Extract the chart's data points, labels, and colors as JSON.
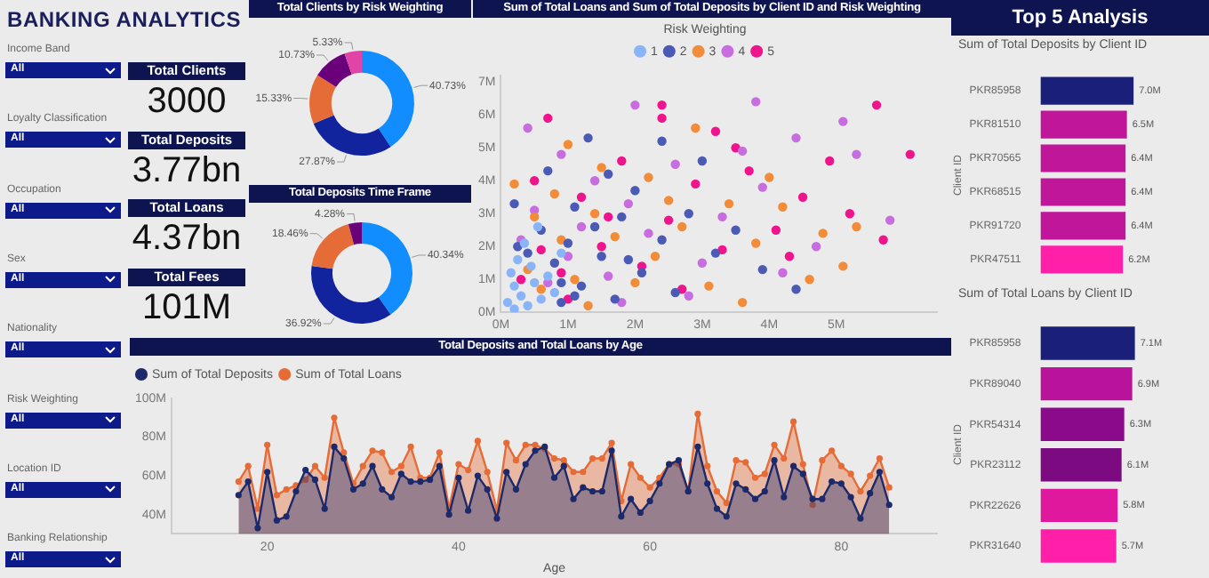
{
  "chart_data": [
    {
      "type": "other",
      "title": "BANKING ANALYTICS",
      "annotations": [
        "Income Band",
        "All",
        "Loyalty Classification",
        "All",
        "Occupation",
        "All",
        "Sex",
        "All",
        "Nationality",
        "All",
        "Risk Weighting",
        "All",
        "Location ID",
        "All",
        "Banking Relationship",
        "All"
      ]
    },
    {
      "type": "other",
      "annotations": [
        "Total Clients",
        "3000",
        "Total Deposits",
        "3.77bn",
        "Total Loans",
        "4.37bn",
        "Total Fees",
        "101M"
      ]
    },
    {
      "type": "donut",
      "title": "Total Clients by Risk Weighting",
      "categories": [
        null,
        null,
        null,
        null,
        null
      ],
      "values": [
        40.73,
        27.87,
        15.33,
        10.73,
        5.33
      ],
      "colors": [
        "#118dff",
        "#12239e",
        "#e66c37",
        "#6b007b",
        "#e044a7"
      ],
      "value_labels": [
        "40.73%",
        "27.87%",
        "15.33%",
        "10.73%",
        "5.33%"
      ]
    },
    {
      "type": "donut",
      "title": "Total Deposits Time Frame",
      "categories": [
        null,
        null,
        null,
        null
      ],
      "values": [
        40.34,
        36.92,
        18.46,
        4.28
      ],
      "colors": [
        "#118dff",
        "#12239e",
        "#e66c37",
        "#6b007b"
      ],
      "value_labels": [
        "40.34%",
        "36.92%",
        "18.46%",
        "4.28%"
      ]
    },
    {
      "type": "scatter",
      "title": "Sum of Total Loans and Sum of Total Deposits by Client ID and Risk Weighting",
      "legend_title": "Risk Weighting",
      "legend": "top",
      "marker": "circle",
      "xlim": [
        0,
        6.5
      ],
      "xticks": [
        {
          "value": 0,
          "label": "0M"
        },
        {
          "value": 1,
          "label": "1M"
        },
        {
          "value": 2,
          "label": "2M"
        },
        {
          "value": 3,
          "label": "3M"
        },
        {
          "value": 4,
          "label": "4M"
        },
        {
          "value": 5,
          "label": "5M"
        }
      ],
      "ylim": [
        0,
        7.2
      ],
      "yticks": [
        {
          "value": 0,
          "label": "0M"
        },
        {
          "value": 1,
          "label": "1M"
        },
        {
          "value": 2,
          "label": "2M"
        },
        {
          "value": 3,
          "label": "3M"
        },
        {
          "value": 4,
          "label": "4M"
        },
        {
          "value": 5,
          "label": "5M"
        },
        {
          "value": 6,
          "label": "6M"
        },
        {
          "value": 7,
          "label": "7M"
        }
      ],
      "series": [
        {
          "name": "1",
          "color": "#8ab4f8",
          "x": [
            0.1,
            0.2,
            0.3,
            0.15,
            0.4,
            0.5,
            0.25,
            0.6,
            0.35,
            0.7,
            0.45,
            0.8,
            0.2,
            0.9,
            0.55
          ],
          "values": [
            0.3,
            0.8,
            0.5,
            1.2,
            0.2,
            0.9,
            1.6,
            0.4,
            2.1,
            1.1,
            1.4,
            0.6,
            0.1,
            1.8,
            2.6
          ]
        },
        {
          "name": "2",
          "color": "#4b5bb5",
          "x": [
            0.2,
            2.4,
            1.1,
            0.9,
            0.8,
            1.0,
            1.2,
            1.5,
            0.6,
            1.8,
            2.1,
            2.4,
            0.4,
            1.1,
            1.6,
            2.8,
            3.2,
            0.9,
            1.4,
            2.0,
            3.5,
            0.7,
            2.6,
            3.9,
            1.3,
            1.7,
            4.4,
            3.0,
            0.25,
            1.9
          ],
          "values": [
            3.3,
            5.2,
            0.5,
            0.9,
            1.5,
            2.1,
            0.8,
            1.7,
            2.5,
            2.9,
            1.2,
            2.2,
            1.8,
            3.2,
            4.2,
            3.0,
            1.8,
            0.3,
            2.6,
            3.7,
            2.5,
            4.3,
            0.6,
            1.3,
            5.3,
            0.4,
            0.7,
            4.6,
            2.0,
            1.6
          ]
        },
        {
          "name": "3",
          "color": "#f28c38",
          "x": [
            0.2,
            5.1,
            0.4,
            0.6,
            0.9,
            1.1,
            1.4,
            1.7,
            2.0,
            2.3,
            2.7,
            3.1,
            3.4,
            0.8,
            1.5,
            2.2,
            3.8,
            4.2,
            4.6,
            1.0,
            2.9,
            0.5,
            3.6,
            1.3,
            4.0,
            2.5,
            4.8,
            5.3
          ],
          "values": [
            3.9,
            1.4,
            1.3,
            0.7,
            2.2,
            1.0,
            3.0,
            2.3,
            0.9,
            1.7,
            2.6,
            0.8,
            3.3,
            3.6,
            4.4,
            4.1,
            2.1,
            3.2,
            1.0,
            5.1,
            5.6,
            2.9,
            0.3,
            0.2,
            4.1,
            3.4,
            2.4,
            2.6
          ]
        },
        {
          "name": "4",
          "color": "#c86ddf",
          "x": [
            2.0,
            3.8,
            5.1,
            5.8,
            0.4,
            0.7,
            1.0,
            1.2,
            1.6,
            1.9,
            2.2,
            2.6,
            3.0,
            3.3,
            0.5,
            1.4,
            3.9,
            4.4,
            4.7,
            0.9,
            2.8,
            4.2,
            3.6,
            0.3,
            5.3,
            1.8
          ],
          "values": [
            6.3,
            6.4,
            5.8,
            2.8,
            5.6,
            0.9,
            1.7,
            2.6,
            1.1,
            3.3,
            2.4,
            4.5,
            1.5,
            2.9,
            3.1,
            4.0,
            3.8,
            5.3,
            2.0,
            4.8,
            0.5,
            1.2,
            4.9,
            2.2,
            4.8,
            0.3
          ]
        },
        {
          "name": "5",
          "color": "#f0148c",
          "x": [
            5.6,
            6.1,
            2.4,
            2.4,
            0.7,
            3.2,
            5.7,
            0.3,
            0.6,
            0.9,
            1.2,
            1.5,
            1.8,
            2.1,
            2.5,
            2.9,
            3.3,
            3.7,
            4.1,
            4.5,
            4.9,
            0.5,
            1.0,
            2.7,
            4.3,
            5.2,
            3.5,
            1.6
          ],
          "values": [
            6.3,
            4.8,
            6.3,
            5.9,
            5.9,
            5.5,
            2.2,
            1.0,
            1.9,
            1.2,
            3.5,
            2.0,
            4.6,
            1.4,
            2.8,
            3.9,
            1.9,
            4.3,
            2.5,
            3.5,
            4.6,
            4.0,
            0.4,
            0.7,
            1.7,
            3.0,
            5.0,
            2.9
          ]
        }
      ]
    },
    {
      "type": "area",
      "title": "Total Deposits and Total Loans by Age",
      "xlabel": "Age",
      "legend": "top left",
      "marker": "circle",
      "x": [
        17,
        18,
        19,
        20,
        21,
        22,
        23,
        24,
        25,
        26,
        27,
        28,
        29,
        30,
        31,
        32,
        33,
        34,
        35,
        36,
        37,
        38,
        39,
        40,
        41,
        42,
        43,
        44,
        45,
        46,
        47,
        48,
        49,
        50,
        51,
        52,
        53,
        54,
        55,
        56,
        57,
        58,
        59,
        60,
        61,
        62,
        63,
        64,
        65,
        66,
        67,
        68,
        69,
        70,
        71,
        72,
        73,
        74,
        75,
        76,
        77,
        78,
        79,
        80,
        81,
        82,
        83,
        84,
        85
      ],
      "xlim": [
        10,
        90
      ],
      "xticks": [
        20,
        40,
        60,
        80
      ],
      "ylim": [
        30,
        100
      ],
      "yticks": [
        {
          "value": 40,
          "label": "40M"
        },
        {
          "value": 60,
          "label": "60M"
        },
        {
          "value": 80,
          "label": "80M"
        },
        {
          "value": 100,
          "label": "100M"
        }
      ],
      "series": [
        {
          "name": "Sum of Total Deposits",
          "color": "#1c2a6b",
          "values": [
            50,
            57,
            33,
            62,
            37,
            39,
            52,
            63,
            58,
            43,
            75,
            69,
            53,
            56,
            65,
            53,
            49,
            61,
            57,
            57,
            58,
            65,
            40,
            59,
            42,
            60,
            53,
            38,
            62,
            53,
            66,
            73,
            75,
            59,
            65,
            48,
            54,
            52,
            52,
            73,
            39,
            48,
            41,
            47,
            56,
            66,
            68,
            52,
            75,
            56,
            43,
            39,
            56,
            53,
            48,
            52,
            68,
            49,
            65,
            61,
            48,
            48,
            57,
            56,
            49,
            38,
            51,
            62,
            45
          ]
        },
        {
          "name": "Sum of Total Loans",
          "color": "#e66c37",
          "values": [
            57,
            65,
            43,
            76,
            50,
            53,
            55,
            58,
            65,
            59,
            90,
            72,
            56,
            65,
            73,
            72,
            62,
            65,
            75,
            59,
            59,
            72,
            43,
            66,
            63,
            78,
            62,
            42,
            77,
            68,
            76,
            76,
            74,
            69,
            68,
            62,
            62,
            69,
            69,
            77,
            47,
            66,
            59,
            54,
            59,
            66,
            66,
            52,
            92,
            65,
            52,
            46,
            68,
            67,
            59,
            61,
            76,
            69,
            88,
            66,
            45,
            68,
            73,
            65,
            61,
            52,
            60,
            69,
            54
          ]
        }
      ]
    },
    {
      "type": "bar",
      "orientation": "horizontal",
      "title": "Sum of Total Deposits by Client ID",
      "annotations": [
        "Top 5 Analysis"
      ],
      "ylabel": "Client ID",
      "categories": [
        "PKR85958",
        "PKR81510",
        "PKR70565",
        "PKR68515",
        "PKR91720",
        "PKR47511"
      ],
      "values": [
        7.0,
        6.5,
        6.4,
        6.4,
        6.4,
        6.2
      ],
      "colors": [
        "#1a1f7a",
        "#c0169a",
        "#c0169a",
        "#c0169a",
        "#c0169a",
        "#ff1fa8"
      ],
      "value_labels": [
        "7.0M",
        "6.5M",
        "6.4M",
        "6.4M",
        "6.4M",
        "6.2M"
      ]
    },
    {
      "type": "bar",
      "orientation": "horizontal",
      "title": "Sum of Total Loans by Client ID",
      "ylabel": "Client ID",
      "categories": [
        "PKR85958",
        "PKR89040",
        "PKR54314",
        "PKR23112",
        "PKR22626",
        "PKR31640"
      ],
      "values": [
        7.1,
        6.9,
        6.3,
        6.1,
        5.8,
        5.7
      ],
      "colors": [
        "#1a1f7a",
        "#b8139a",
        "#8b0a8b",
        "#7c0a80",
        "#e0189e",
        "#ff1fa8"
      ],
      "value_labels": [
        "7.1M",
        "6.9M",
        "6.3M",
        "6.1M",
        "5.8M",
        "5.7M"
      ]
    }
  ]
}
